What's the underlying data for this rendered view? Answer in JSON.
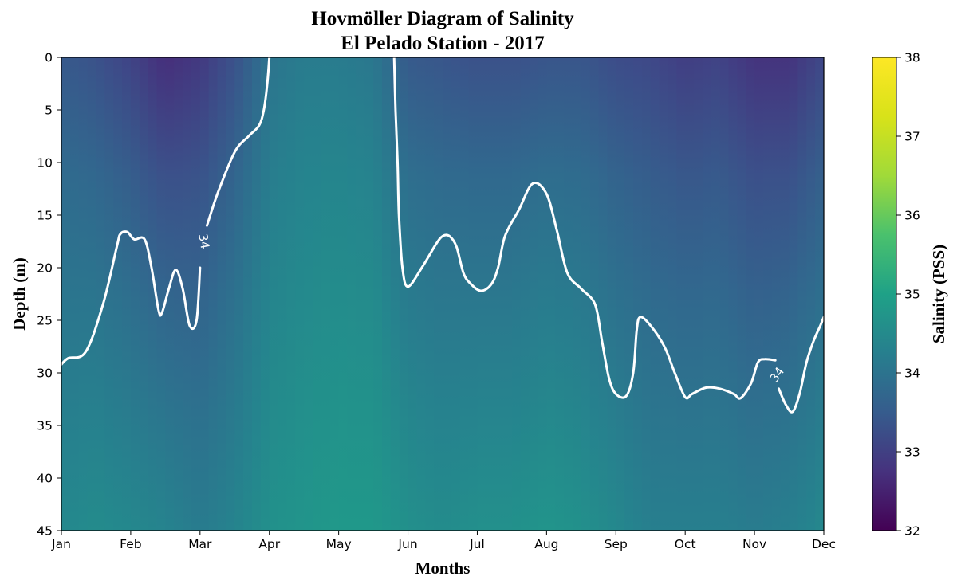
{
  "chart_data": {
    "type": "heatmap",
    "title_lines": [
      "Hovmöller Diagram of Salinity",
      "El Pelado Station - 2017"
    ],
    "xlabel": "Months",
    "ylabel": "Depth (m)",
    "colorbar_label": "Salinity (PSS)",
    "colormap": "viridis",
    "x_tick_labels": [
      "Jan",
      "Feb",
      "Mar",
      "Apr",
      "May",
      "Jun",
      "Jul",
      "Aug",
      "Sep",
      "Oct",
      "Nov",
      "Dec"
    ],
    "xlim": [
      1,
      12
    ],
    "y_ticks": [
      0,
      5,
      10,
      15,
      20,
      25,
      30,
      35,
      40,
      45
    ],
    "ylim": [
      45,
      0
    ],
    "y_inverted": true,
    "colorbar_ticks": [
      32,
      33,
      34,
      35,
      36,
      37,
      38
    ],
    "colorbar_range": [
      32,
      38
    ],
    "salinity_profiles": {
      "months": [
        1,
        1.5,
        2,
        2.5,
        3,
        3.5,
        4,
        4.5,
        5,
        5.5,
        6,
        6.5,
        7,
        7.5,
        8,
        8.5,
        9,
        9.5,
        10,
        10.5,
        11,
        11.5,
        12
      ],
      "surface": [
        33.7,
        33.5,
        33.2,
        32.8,
        33.0,
        33.5,
        34.3,
        34.5,
        34.5,
        34.4,
        33.7,
        33.6,
        33.5,
        33.5,
        33.6,
        33.6,
        33.4,
        33.3,
        33.1,
        33.2,
        32.9,
        32.9,
        33.3
      ],
      "depth_45m": [
        34.8,
        34.9,
        34.8,
        34.7,
        34.5,
        34.7,
        35.0,
        35.1,
        35.2,
        35.2,
        35.0,
        34.9,
        35.0,
        35.0,
        35.1,
        35.0,
        34.8,
        34.6,
        34.6,
        34.6,
        34.5,
        34.6,
        34.8
      ]
    },
    "contour_34": {
      "level_label": "34",
      "segments": [
        {
          "points": [
            [
              1.0,
              29.2
            ],
            [
              1.1,
              28.6
            ],
            [
              1.35,
              28.0
            ],
            [
              1.6,
              23.5
            ],
            [
              1.8,
              18.0
            ],
            [
              1.85,
              16.8
            ],
            [
              1.95,
              16.6
            ],
            [
              2.05,
              17.3
            ],
            [
              2.2,
              17.3
            ],
            [
              2.3,
              20.0
            ],
            [
              2.4,
              24.0
            ],
            [
              2.45,
              24.3
            ],
            [
              2.55,
              22.0
            ],
            [
              2.65,
              20.2
            ],
            [
              2.75,
              22.0
            ],
            [
              2.85,
              25.5
            ],
            [
              2.95,
              25.0
            ],
            [
              3.0,
              20.0
            ]
          ]
        },
        {
          "points": [
            [
              3.1,
              16.0
            ],
            [
              3.25,
              13.0
            ],
            [
              3.5,
              9.0
            ],
            [
              3.7,
              7.5
            ],
            [
              3.85,
              6.5
            ],
            [
              3.92,
              5.0
            ],
            [
              3.97,
              2.5
            ],
            [
              4.0,
              0.0
            ]
          ]
        },
        {
          "points": [
            [
              5.8,
              0.0
            ],
            [
              5.82,
              5.0
            ],
            [
              5.85,
              10.0
            ],
            [
              5.87,
              15.0
            ],
            [
              5.92,
              20.0
            ],
            [
              6.0,
              21.8
            ],
            [
              6.2,
              20.0
            ],
            [
              6.4,
              17.8
            ],
            [
              6.5,
              17.0
            ],
            [
              6.6,
              17.0
            ],
            [
              6.7,
              18.0
            ],
            [
              6.8,
              20.5
            ],
            [
              6.9,
              21.5
            ],
            [
              7.05,
              22.2
            ],
            [
              7.2,
              21.6
            ],
            [
              7.3,
              20.0
            ],
            [
              7.4,
              17.0
            ],
            [
              7.6,
              14.5
            ],
            [
              7.8,
              12.0
            ],
            [
              8.0,
              13.0
            ],
            [
              8.15,
              16.5
            ],
            [
              8.3,
              20.5
            ],
            [
              8.5,
              22.0
            ],
            [
              8.7,
              23.5
            ],
            [
              8.8,
              27.0
            ],
            [
              8.9,
              30.5
            ],
            [
              9.0,
              32.0
            ],
            [
              9.15,
              32.2
            ],
            [
              9.25,
              30.0
            ],
            [
              9.3,
              26.0
            ],
            [
              9.35,
              24.7
            ],
            [
              9.5,
              25.5
            ],
            [
              9.7,
              27.5
            ],
            [
              9.85,
              30.0
            ],
            [
              10.0,
              32.3
            ],
            [
              10.1,
              32.0
            ],
            [
              10.3,
              31.4
            ],
            [
              10.5,
              31.5
            ],
            [
              10.7,
              32.0
            ],
            [
              10.8,
              32.4
            ],
            [
              10.95,
              31.0
            ],
            [
              11.05,
              29.0
            ],
            [
              11.15,
              28.7
            ],
            [
              11.3,
              28.8
            ]
          ]
        },
        {
          "points": [
            [
              11.35,
              31.5
            ],
            [
              11.45,
              33.0
            ],
            [
              11.55,
              33.7
            ],
            [
              11.65,
              32.0
            ],
            [
              11.75,
              29.0
            ],
            [
              11.85,
              27.0
            ],
            [
              11.95,
              25.5
            ],
            [
              12.0,
              24.7
            ]
          ]
        }
      ],
      "label_positions": [
        [
          3.05,
          17.5
        ],
        [
          11.33,
          30.2
        ]
      ]
    }
  }
}
